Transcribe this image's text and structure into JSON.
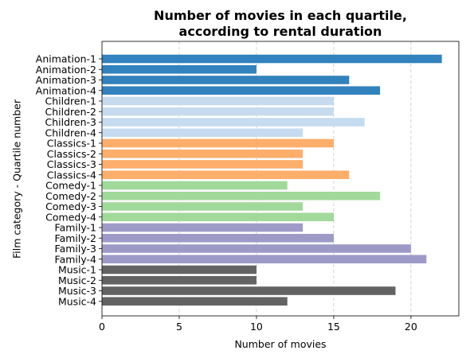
{
  "chart_data": {
    "type": "bar",
    "orientation": "horizontal",
    "title": "Number of movies in each quartile,\naccording to rental duration",
    "title_lines": [
      "Number of movies in each quartile,",
      "according to rental duration"
    ],
    "xlabel": "Number of movies",
    "ylabel": "Film category - Quartile number",
    "xlim": [
      0,
      23.1
    ],
    "xticks": [
      "0",
      "5",
      "10",
      "15",
      "20"
    ],
    "grid": "x dashed",
    "legend": "none",
    "bars": [
      {
        "label": "Animation-1",
        "value": 22,
        "group": "Animation"
      },
      {
        "label": "Animation-2",
        "value": 10,
        "group": "Animation"
      },
      {
        "label": "Animation-3",
        "value": 16,
        "group": "Animation"
      },
      {
        "label": "Animation-4",
        "value": 18,
        "group": "Animation"
      },
      {
        "label": "Children-1",
        "value": 15,
        "group": "Children"
      },
      {
        "label": "Children-2",
        "value": 15,
        "group": "Children"
      },
      {
        "label": "Children-3",
        "value": 17,
        "group": "Children"
      },
      {
        "label": "Children-4",
        "value": 13,
        "group": "Children"
      },
      {
        "label": "Classics-1",
        "value": 15,
        "group": "Classics"
      },
      {
        "label": "Classics-2",
        "value": 13,
        "group": "Classics"
      },
      {
        "label": "Classics-3",
        "value": 13,
        "group": "Classics"
      },
      {
        "label": "Classics-4",
        "value": 16,
        "group": "Classics"
      },
      {
        "label": "Comedy-1",
        "value": 12,
        "group": "Comedy"
      },
      {
        "label": "Comedy-2",
        "value": 18,
        "group": "Comedy"
      },
      {
        "label": "Comedy-3",
        "value": 13,
        "group": "Comedy"
      },
      {
        "label": "Comedy-4",
        "value": 15,
        "group": "Comedy"
      },
      {
        "label": "Family-1",
        "value": 13,
        "group": "Family"
      },
      {
        "label": "Family-2",
        "value": 15,
        "group": "Family"
      },
      {
        "label": "Family-3",
        "value": 20,
        "group": "Family"
      },
      {
        "label": "Family-4",
        "value": 21,
        "group": "Family"
      },
      {
        "label": "Music-1",
        "value": 10,
        "group": "Music"
      },
      {
        "label": "Music-2",
        "value": 10,
        "group": "Music"
      },
      {
        "label": "Music-3",
        "value": 19,
        "group": "Music"
      },
      {
        "label": "Music-4",
        "value": 12,
        "group": "Music"
      }
    ],
    "group_colors": {
      "Animation": "#3182bd",
      "Children": "#c6dbef",
      "Classics": "#fdae6b",
      "Comedy": "#a1d99b",
      "Family": "#9e9ac8",
      "Music": "#636363"
    }
  }
}
